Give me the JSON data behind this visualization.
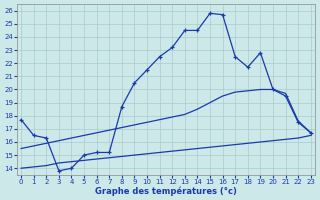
{
  "title": "Graphe des températures (°c)",
  "bg_color": "#cce8e8",
  "line_color": "#1a3aab",
  "grid_color": "#aacccc",
  "xlim": [
    -0.3,
    23.3
  ],
  "ylim": [
    13.5,
    26.5
  ],
  "xticks": [
    0,
    1,
    2,
    3,
    4,
    5,
    6,
    7,
    8,
    9,
    10,
    11,
    12,
    13,
    14,
    15,
    16,
    17,
    18,
    19,
    20,
    21,
    22,
    23
  ],
  "yticks": [
    14,
    15,
    16,
    17,
    18,
    19,
    20,
    21,
    22,
    23,
    24,
    25,
    26
  ],
  "line1_x": [
    0,
    1,
    2,
    3,
    4,
    5,
    6,
    7,
    8,
    9,
    10,
    11,
    12,
    13,
    14,
    15,
    16,
    17,
    18,
    19,
    20,
    21,
    22,
    23
  ],
  "line1_y": [
    17.7,
    16.5,
    16.3,
    13.8,
    14.0,
    15.0,
    15.2,
    15.2,
    18.7,
    20.5,
    21.5,
    22.5,
    23.2,
    24.5,
    24.5,
    25.8,
    25.7,
    22.5,
    21.7,
    22.8,
    20.0,
    19.5,
    17.5,
    16.7
  ],
  "line2_x": [
    0,
    1,
    2,
    3,
    4,
    5,
    6,
    7,
    8,
    9,
    10,
    11,
    12,
    13,
    14,
    15,
    16,
    17,
    18,
    19,
    20,
    21,
    22,
    23
  ],
  "line2_y": [
    15.5,
    15.7,
    15.9,
    16.1,
    16.3,
    16.5,
    16.7,
    16.9,
    17.1,
    17.3,
    17.5,
    17.7,
    17.9,
    18.1,
    18.5,
    19.0,
    19.5,
    19.8,
    19.9,
    20.0,
    20.0,
    19.7,
    17.6,
    16.7
  ],
  "line3_x": [
    0,
    1,
    2,
    3,
    4,
    5,
    6,
    7,
    8,
    9,
    10,
    11,
    12,
    13,
    14,
    15,
    16,
    17,
    18,
    19,
    20,
    21,
    22,
    23
  ],
  "line3_y": [
    14.0,
    14.1,
    14.2,
    14.4,
    14.5,
    14.6,
    14.7,
    14.8,
    14.9,
    15.0,
    15.1,
    15.2,
    15.3,
    15.4,
    15.5,
    15.6,
    15.7,
    15.8,
    15.9,
    16.0,
    16.1,
    16.2,
    16.3,
    16.5
  ]
}
